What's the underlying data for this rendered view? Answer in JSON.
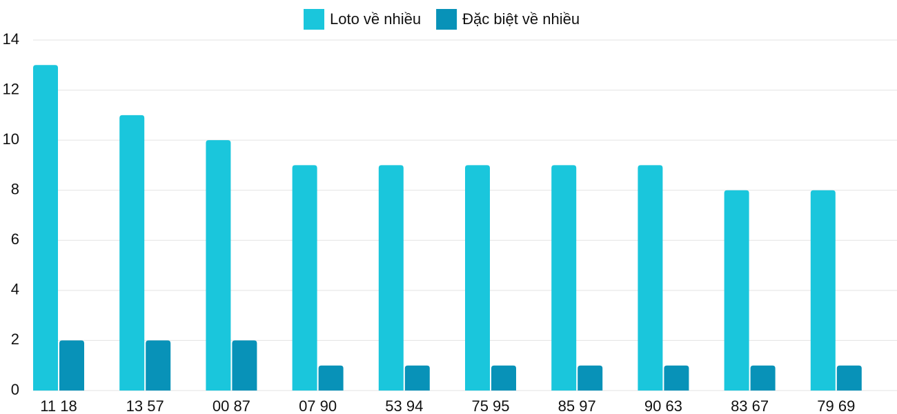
{
  "chart_data": {
    "type": "bar",
    "categories": [
      "11 18",
      "13 57",
      "00 87",
      "07 90",
      "53 94",
      "75 95",
      "85 97",
      "90 63",
      "83 67",
      "79 69"
    ],
    "series": [
      {
        "name": "Loto về nhiều",
        "color": "#1ac6dc",
        "values": [
          13,
          11,
          10,
          9,
          9,
          9,
          9,
          9,
          8,
          8
        ]
      },
      {
        "name": "Đặc biệt về nhiều",
        "color": "#0892b8",
        "values": [
          2,
          2,
          2,
          1,
          1,
          1,
          1,
          1,
          1,
          1
        ]
      }
    ],
    "ylim": [
      0,
      14
    ],
    "yticks": [
      0,
      2,
      4,
      6,
      8,
      10,
      12,
      14
    ],
    "grid": true,
    "legend": "top"
  }
}
